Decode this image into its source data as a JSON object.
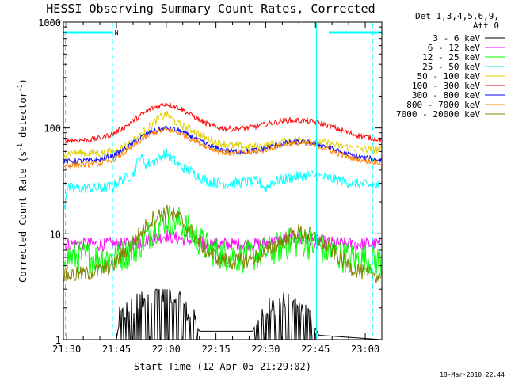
{
  "chart_data": {
    "type": "line",
    "title": "HESSI Observing Summary Count Rates, Corrected",
    "xlabel": "Start Time (12-Apr-05 21:29:02)",
    "ylabel": "Corrected Count Rate (s^-1 detector^-1)",
    "ylabel_parts": [
      "Corrected Count Rate (s",
      "-1",
      " detector",
      "-1",
      ")"
    ],
    "yscale": "log",
    "ylim": [
      1,
      1000
    ],
    "xlim_min": [
      1289,
      1385
    ],
    "x_ticks": [
      {
        "value": 1290,
        "label": "21:30"
      },
      {
        "value": 1305,
        "label": "21:45"
      },
      {
        "value": 1320,
        "label": "22:00"
      },
      {
        "value": 1335,
        "label": "22:15"
      },
      {
        "value": 1350,
        "label": "22:30"
      },
      {
        "value": 1365,
        "label": "22:45"
      },
      {
        "value": 1380,
        "label": "23:00"
      }
    ],
    "y_ticks": [
      {
        "value": 1,
        "label": "1"
      },
      {
        "value": 10,
        "label": "10"
      },
      {
        "value": 100,
        "label": "100"
      },
      {
        "value": 1000,
        "label": "1000"
      }
    ],
    "legend_header": [
      "Det 1,3,4,5,6,9,",
      "Att 0"
    ],
    "legend_position": "right-outside",
    "series": [
      {
        "name": "3 - 6 keV",
        "color": "#000000",
        "noise": 0.0,
        "x": [
          1289,
          1304,
          1305,
          1306,
          1308,
          1310,
          1312,
          1314,
          1316,
          1318,
          1320,
          1322,
          1324,
          1326,
          1328,
          1330,
          1346,
          1348,
          1350,
          1352,
          1354,
          1356,
          1358,
          1360,
          1362,
          1364,
          1366,
          1385
        ],
        "y": [
          1,
          1,
          1,
          1.6,
          1.8,
          2.0,
          2.2,
          2.6,
          2.8,
          2.8,
          2.8,
          2.6,
          2.2,
          1.8,
          1.6,
          1.2,
          1.2,
          1.6,
          1.8,
          2.0,
          2.2,
          2.2,
          2.0,
          1.9,
          1.8,
          1.5,
          1.1,
          1
        ]
      },
      {
        "name": "6 - 12 keV",
        "color": "#ff00ff",
        "noise": 0.05,
        "x": [
          1289,
          1300,
          1304,
          1308,
          1312,
          1316,
          1320,
          1324,
          1328,
          1332,
          1340,
          1348,
          1352,
          1356,
          1360,
          1364,
          1370,
          1376,
          1385
        ],
        "y": [
          8,
          8,
          8,
          8,
          8.4,
          9,
          9.6,
          9,
          8.6,
          8,
          8,
          8,
          8.4,
          8.8,
          8.8,
          8.6,
          8.2,
          8,
          8
        ]
      },
      {
        "name": "12 - 25 keV",
        "color": "#00ff00",
        "noise": 0.12,
        "x": [
          1289,
          1300,
          1304,
          1308,
          1312,
          1316,
          1320,
          1324,
          1328,
          1332,
          1336,
          1340,
          1344,
          1348,
          1352,
          1356,
          1360,
          1364,
          1368,
          1374,
          1380,
          1385
        ],
        "y": [
          6,
          6,
          6,
          6.5,
          8,
          11,
          14,
          13,
          10,
          7.5,
          6.5,
          6.2,
          6,
          6.4,
          7,
          8,
          8.5,
          8,
          7,
          6,
          5.8,
          5.5
        ]
      },
      {
        "name": "25 - 50 keV",
        "color": "#00ffff",
        "noise": 0.04,
        "x": [
          1289,
          1290,
          1296,
          1300,
          1304,
          1306,
          1308,
          1310,
          1312,
          1314,
          1316,
          1318,
          1320,
          1322,
          1324,
          1328,
          1332,
          1336,
          1340,
          1344,
          1348,
          1350,
          1352,
          1356,
          1360,
          1364,
          1368,
          1372,
          1376,
          1380,
          1385
        ],
        "y": [
          15,
          27,
          27,
          27,
          28,
          32,
          34,
          36,
          55,
          45,
          48,
          52,
          58,
          50,
          44,
          38,
          32,
          30,
          30,
          31,
          31,
          27,
          31,
          33,
          35,
          36,
          34,
          32,
          30,
          29,
          28
        ]
      },
      {
        "name": "50 - 100 keV",
        "color": "#e0d000",
        "noise": 0.03,
        "x": [
          1289,
          1296,
          1300,
          1304,
          1308,
          1312,
          1316,
          1318,
          1320,
          1322,
          1324,
          1328,
          1332,
          1336,
          1340,
          1344,
          1348,
          1352,
          1356,
          1360,
          1364,
          1368,
          1372,
          1376,
          1380,
          1385
        ],
        "y": [
          58,
          58,
          58,
          60,
          68,
          85,
          110,
          125,
          135,
          120,
          108,
          95,
          80,
          72,
          68,
          66,
          67,
          70,
          75,
          78,
          76,
          72,
          68,
          65,
          63,
          62
        ]
      },
      {
        "name": "100 - 300 keV",
        "color": "#ff0000",
        "noise": 0.02,
        "x": [
          1289,
          1296,
          1300,
          1304,
          1308,
          1312,
          1316,
          1320,
          1324,
          1328,
          1332,
          1336,
          1340,
          1344,
          1348,
          1352,
          1356,
          1360,
          1364,
          1368,
          1372,
          1376,
          1380,
          1385
        ],
        "y": [
          76,
          77,
          80,
          88,
          105,
          130,
          155,
          170,
          155,
          130,
          110,
          100,
          98,
          100,
          105,
          112,
          118,
          118,
          115,
          108,
          97,
          88,
          82,
          78
        ]
      },
      {
        "name": "300 - 800 keV",
        "color": "#0000ff",
        "noise": 0.02,
        "x": [
          1289,
          1296,
          1300,
          1304,
          1308,
          1312,
          1316,
          1320,
          1324,
          1328,
          1332,
          1336,
          1340,
          1344,
          1348,
          1352,
          1356,
          1360,
          1364,
          1368,
          1372,
          1376,
          1380,
          1385
        ],
        "y": [
          48,
          49,
          50,
          55,
          64,
          80,
          94,
          100,
          94,
          82,
          70,
          63,
          60,
          60,
          62,
          67,
          72,
          74,
          72,
          67,
          60,
          55,
          52,
          50
        ]
      },
      {
        "name": "800 - 7000 keV",
        "color": "#ff8000",
        "noise": 0.02,
        "x": [
          1289,
          1296,
          1300,
          1304,
          1308,
          1312,
          1316,
          1320,
          1324,
          1328,
          1332,
          1336,
          1340,
          1344,
          1348,
          1352,
          1356,
          1360,
          1364,
          1368,
          1372,
          1376,
          1380,
          1385
        ],
        "y": [
          44,
          45,
          46,
          50,
          60,
          75,
          90,
          96,
          90,
          78,
          67,
          60,
          57,
          58,
          60,
          65,
          70,
          72,
          70,
          64,
          57,
          52,
          49,
          47
        ]
      },
      {
        "name": "7000 - 20000 keV",
        "color": "#808000",
        "noise": 0.06,
        "x": [
          1289,
          1296,
          1300,
          1304,
          1306,
          1308,
          1312,
          1316,
          1320,
          1324,
          1328,
          1332,
          1336,
          1340,
          1344,
          1348,
          1352,
          1356,
          1360,
          1364,
          1368,
          1372,
          1376,
          1380,
          1385
        ],
        "y": [
          4,
          4.2,
          4.5,
          5,
          6,
          7,
          10,
          14,
          16,
          14,
          10,
          7,
          5.8,
          5.4,
          5.6,
          6.2,
          7.5,
          9,
          10.5,
          9.5,
          8,
          6,
          4.8,
          4.2,
          4
        ]
      }
    ],
    "attenuator_bars": [
      {
        "x": [
          1289,
          1303.5
        ],
        "y": 800
      },
      {
        "x": [
          1369,
          1385
        ],
        "y": 800
      }
    ],
    "dashed_markers_x": [
      1289.6,
      1303.8,
      1382.2
    ],
    "solid_marker_x": [
      1365.3
    ],
    "marker_color": "#00ffff",
    "annotation": "N",
    "footer_timestamp": "18-Mar-2010 22:44"
  }
}
